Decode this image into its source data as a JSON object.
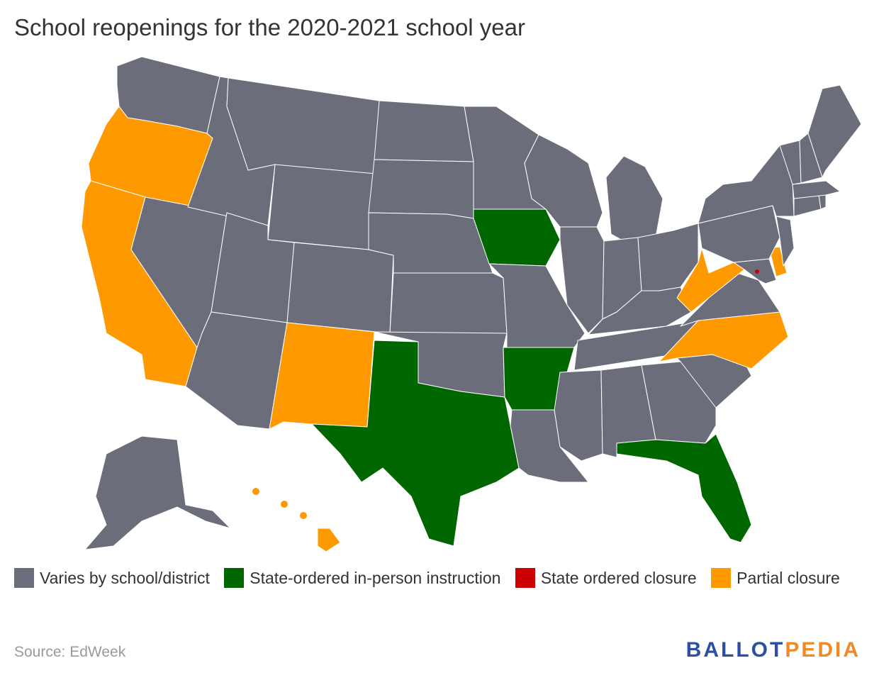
{
  "title": "School reopenings for the 2020-2021 school year",
  "colors": {
    "varies": "#6b6e7a",
    "in_person": "#006600",
    "closure": "#cc0000",
    "partial": "#ff9900"
  },
  "legend": {
    "varies": "Varies by school/district",
    "in_person": "State-ordered in-person instruction",
    "closure": "State ordered closure",
    "partial": "Partial closure"
  },
  "source": "Source: EdWeek",
  "logo": {
    "part1": "BALLOT",
    "part2": "PEDIA"
  },
  "map_data": {
    "states": {
      "WA": "varies",
      "OR": "partial",
      "CA": "partial",
      "NV": "varies",
      "ID": "varies",
      "MT": "varies",
      "WY": "varies",
      "UT": "varies",
      "AZ": "varies",
      "CO": "varies",
      "NM": "partial",
      "ND": "varies",
      "SD": "varies",
      "NE": "varies",
      "KS": "varies",
      "OK": "varies",
      "TX": "in_person",
      "MN": "varies",
      "IA": "in_person",
      "MO": "varies",
      "AR": "in_person",
      "LA": "varies",
      "WI": "varies",
      "IL": "varies",
      "MI": "varies",
      "IN": "varies",
      "OH": "varies",
      "KY": "varies",
      "TN": "varies",
      "MS": "varies",
      "AL": "varies",
      "GA": "varies",
      "FL": "in_person",
      "SC": "varies",
      "NC": "partial",
      "VA": "varies",
      "WV": "partial",
      "MD": "varies",
      "DE": "partial",
      "DC": "closure",
      "PA": "varies",
      "NJ": "varies",
      "NY": "varies",
      "CT": "varies",
      "RI": "varies",
      "MA": "varies",
      "VT": "varies",
      "NH": "varies",
      "ME": "varies",
      "AK": "varies",
      "HI": "partial"
    }
  }
}
